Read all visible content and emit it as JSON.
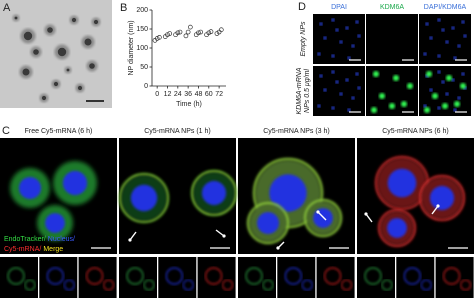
{
  "panel_labels": [
    "A",
    "B",
    "C",
    "D"
  ],
  "chart_data": {
    "type": "scatter",
    "x": [
      0,
      12,
      24,
      36,
      48,
      60,
      72
    ],
    "values": [
      [
        120,
        125,
        128
      ],
      [
        130,
        135,
        138
      ],
      [
        135,
        140,
        142
      ],
      [
        132,
        142,
        155
      ],
      [
        135,
        140,
        142
      ],
      [
        135,
        140,
        143
      ],
      [
        138,
        142,
        148
      ]
    ],
    "xlim": [
      -6,
      80
    ],
    "xticks": [
      0,
      12,
      24,
      36,
      48,
      60,
      72
    ],
    "ylim": [
      0,
      200
    ],
    "yticks": [
      0,
      50,
      100,
      150,
      200
    ],
    "xlabel": "Time (h)",
    "ylabel": "NP diameter (nm)",
    "color": "#333333"
  },
  "panel_c": {
    "titles": [
      "Free Cy5-mRNA (6 h)",
      "Cy5-mRNA NPs (1 h)",
      "Cy5-mRNA NPs (3 h)",
      "Cy5-mRNA NPs (6 h)"
    ],
    "legend": [
      "EndoTracker/",
      "Nucleus/",
      "Cy5-mRNA/",
      "Merge"
    ]
  },
  "panel_d": {
    "columns": [
      "DPAI",
      "KDM6A",
      "DAPI/KDM6A"
    ],
    "rows": [
      [
        "Empty NPs"
      ],
      [
        "KDM6A-mRNA",
        "NPs 0.5 μg/ml"
      ]
    ]
  }
}
